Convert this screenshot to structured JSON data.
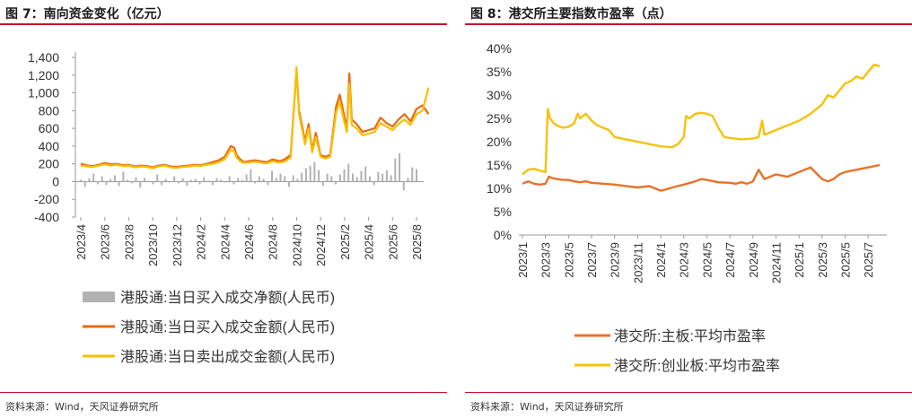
{
  "panels": {
    "left": {
      "title": "图 7：南向资金变化（亿元）",
      "source": "资料来源：Wind，天风证券研究所"
    },
    "right": {
      "title": "图 8：港交所主要指数市盈率（点）",
      "source": "资料来源：Wind，天风证券研究所"
    }
  },
  "chart_data": [
    {
      "type": "line",
      "title": "南向资金变化（亿元）",
      "x_ticks": [
        "2023/4",
        "2023/6",
        "2023/8",
        "2023/10",
        "2023/12",
        "2024/2",
        "2024/4",
        "2024/6",
        "2024/8",
        "2024/10",
        "2024/12",
        "2025/2",
        "2025/4",
        "2025/6",
        "2025/8"
      ],
      "x_start": "2023/4",
      "x_end": "2025/8",
      "ylim": [
        -400,
        1400
      ],
      "yticks": [
        -400,
        -200,
        0,
        200,
        400,
        600,
        800,
        1000,
        1200,
        1400
      ],
      "ytick_labels": [
        "-400",
        "-200",
        "0",
        "200",
        "400",
        "600",
        "800",
        "1,000",
        "1,200",
        "1,400"
      ],
      "legend_position": "bottom",
      "series": [
        {
          "name": "港股通:当日买入成交净额(人民币)",
          "style": "bar",
          "color": "#b2b2b2",
          "values": [
            20,
            -60,
            40,
            90,
            -30,
            60,
            -40,
            30,
            70,
            -50,
            110,
            20,
            -20,
            50,
            -70,
            40,
            10,
            -30,
            80,
            -40,
            30,
            -10,
            60,
            -20,
            40,
            -50,
            20,
            30,
            -30,
            50,
            10,
            -40,
            40,
            20,
            -10,
            60,
            -30,
            40,
            20,
            80,
            140,
            -20,
            60,
            30,
            -40,
            120,
            40,
            90,
            60,
            -60,
            70,
            30,
            100,
            150,
            180,
            220,
            130,
            -50,
            90,
            60,
            -30,
            80,
            140,
            200,
            90,
            50,
            120,
            170,
            60,
            -40,
            110,
            90,
            130,
            70,
            260,
            320,
            -100,
            40,
            160,
            140
          ]
        },
        {
          "name": "港股通:当日买入成交金额(人民币)",
          "style": "line",
          "color": "#e86a10",
          "x": [
            0,
            0.6,
            1,
            1.5,
            2,
            2.5,
            3,
            3.5,
            4,
            4.5,
            5,
            5.5,
            6,
            6.5,
            7,
            7.5,
            8,
            8.5,
            9,
            9.5,
            10,
            10.5,
            11,
            11.5,
            12,
            12.5,
            12.8,
            13,
            13.3,
            13.6,
            14,
            14.5,
            15,
            15.5,
            16,
            16.3,
            16.6,
            17,
            17.5,
            18,
            18.2,
            18.5,
            18.7,
            19,
            19.3,
            19.6,
            20,
            20.4,
            20.8,
            21,
            21.3,
            21.6,
            22,
            22.2,
            22.4,
            22.6,
            23,
            23.5,
            24,
            24.5,
            25,
            25.5,
            26,
            26.5,
            27,
            27.5,
            28,
            28.5,
            29
          ],
          "values": [
            200,
            180,
            175,
            190,
            210,
            195,
            200,
            185,
            190,
            170,
            180,
            175,
            160,
            180,
            190,
            170,
            165,
            175,
            180,
            190,
            185,
            200,
            220,
            240,
            280,
            400,
            380,
            300,
            250,
            220,
            230,
            240,
            230,
            220,
            250,
            240,
            230,
            250,
            300,
            1260,
            800,
            600,
            450,
            650,
            350,
            550,
            300,
            280,
            300,
            520,
            850,
            980,
            720,
            600,
            1220,
            700,
            650,
            560,
            580,
            600,
            720,
            660,
            620,
            700,
            760,
            680,
            820,
            860,
            760
          ]
        },
        {
          "name": "港股通:当日卖出成交金额(人民币)",
          "style": "line",
          "color": "#f8bf00",
          "x": [
            0,
            0.6,
            1,
            1.5,
            2,
            2.5,
            3,
            3.5,
            4,
            4.5,
            5,
            5.5,
            6,
            6.5,
            7,
            7.5,
            8,
            8.5,
            9,
            9.5,
            10,
            10.5,
            11,
            11.5,
            12,
            12.5,
            12.8,
            13,
            13.3,
            13.6,
            14,
            14.5,
            15,
            15.5,
            16,
            16.3,
            16.6,
            17,
            17.5,
            18,
            18.2,
            18.5,
            18.7,
            19,
            19.3,
            19.6,
            20,
            20.4,
            20.8,
            21,
            21.3,
            21.6,
            22,
            22.2,
            22.4,
            22.6,
            23,
            23.5,
            24,
            24.5,
            25,
            25.5,
            26,
            26.5,
            27,
            27.5,
            28,
            28.5,
            29
          ],
          "values": [
            180,
            170,
            165,
            180,
            195,
            180,
            190,
            175,
            180,
            160,
            170,
            165,
            150,
            170,
            180,
            160,
            155,
            165,
            170,
            180,
            175,
            190,
            200,
            220,
            250,
            360,
            340,
            270,
            230,
            210,
            215,
            225,
            215,
            205,
            230,
            220,
            215,
            225,
            270,
            1290,
            760,
            560,
            420,
            600,
            330,
            500,
            280,
            260,
            280,
            480,
            780,
            900,
            660,
            560,
            1100,
            640,
            600,
            520,
            540,
            560,
            660,
            620,
            580,
            650,
            700,
            640,
            760,
            800,
            1060
          ]
        }
      ]
    },
    {
      "type": "line",
      "title": "港交所主要指数市盈率（点）",
      "x_ticks": [
        "2023/1",
        "2023/3",
        "2023/5",
        "2023/7",
        "2023/9",
        "2023/11",
        "2024/1",
        "2024/3",
        "2024/5",
        "2024/7",
        "2024/9",
        "2024/11",
        "2025/1",
        "2025/3",
        "2025/5",
        "2025/7"
      ],
      "ylim": [
        0,
        40
      ],
      "yticks": [
        0,
        5,
        10,
        15,
        20,
        25,
        30,
        35,
        40
      ],
      "ytick_labels": [
        "0%",
        "5%",
        "10%",
        "15%",
        "20%",
        "25%",
        "30%",
        "35%",
        "40%"
      ],
      "legend_position": "bottom",
      "series": [
        {
          "name": "港交所:主板:平均市盈率",
          "color": "#e8722a",
          "x": [
            0,
            0.5,
            1,
            1.5,
            2,
            2.3,
            2.6,
            3,
            3.5,
            4,
            4.5,
            5,
            5.5,
            6,
            7,
            8,
            9,
            10,
            11,
            12,
            12.5,
            13,
            14,
            15,
            15.5,
            16,
            17,
            18,
            18.5,
            19,
            19.5,
            20,
            20.5,
            21,
            21.5,
            22,
            23,
            24,
            25,
            26,
            26.5,
            27,
            27.5,
            28,
            29,
            30,
            31
          ],
          "values": [
            11,
            11.5,
            11,
            10.8,
            11,
            12.5,
            12.2,
            12,
            11.8,
            11.8,
            11.5,
            11.3,
            11.5,
            11.2,
            11,
            10.8,
            10.5,
            10.2,
            10.5,
            9.5,
            9.8,
            10.2,
            10.8,
            11.5,
            12,
            11.8,
            11.3,
            11.2,
            11,
            11.3,
            11,
            11.5,
            14,
            12,
            12.5,
            13,
            12.5,
            13.5,
            14.5,
            12,
            11.5,
            12,
            13,
            13.5,
            14,
            14.5,
            15
          ]
        },
        {
          "name": "港交所:创业板:平均市盈率",
          "color": "#f6c20c",
          "x": [
            0,
            0.5,
            1,
            1.5,
            2,
            2.2,
            2.4,
            2.7,
            3,
            3.5,
            4,
            4.5,
            4.8,
            5,
            5.5,
            6,
            6.5,
            7,
            7.5,
            8,
            9,
            10,
            11,
            12,
            13,
            13.5,
            14,
            14.2,
            14.5,
            15,
            15.5,
            16,
            16.5,
            17,
            17.5,
            18,
            19,
            20,
            20.5,
            20.8,
            21,
            21.5,
            22,
            22.5,
            23,
            23.5,
            24,
            25,
            26,
            26.5,
            27,
            27.5,
            28,
            28.5,
            29,
            29.5,
            30,
            30.5,
            31
          ],
          "values": [
            13,
            14,
            14.2,
            13.8,
            13.5,
            27,
            25,
            24,
            23.5,
            23,
            23.2,
            24,
            26,
            25,
            26,
            24.5,
            23.5,
            23,
            22.5,
            21,
            20.5,
            20,
            19.5,
            19,
            18.8,
            19.5,
            21,
            25.5,
            25,
            26,
            26.2,
            26,
            25.5,
            23,
            21,
            20.8,
            20.5,
            20.7,
            21,
            24.5,
            21.5,
            22,
            22.5,
            23,
            23.5,
            24,
            24.5,
            26,
            28,
            30,
            29.5,
            31,
            32.5,
            33,
            34,
            33.5,
            35,
            36.5,
            36.2
          ]
        }
      ]
    }
  ]
}
